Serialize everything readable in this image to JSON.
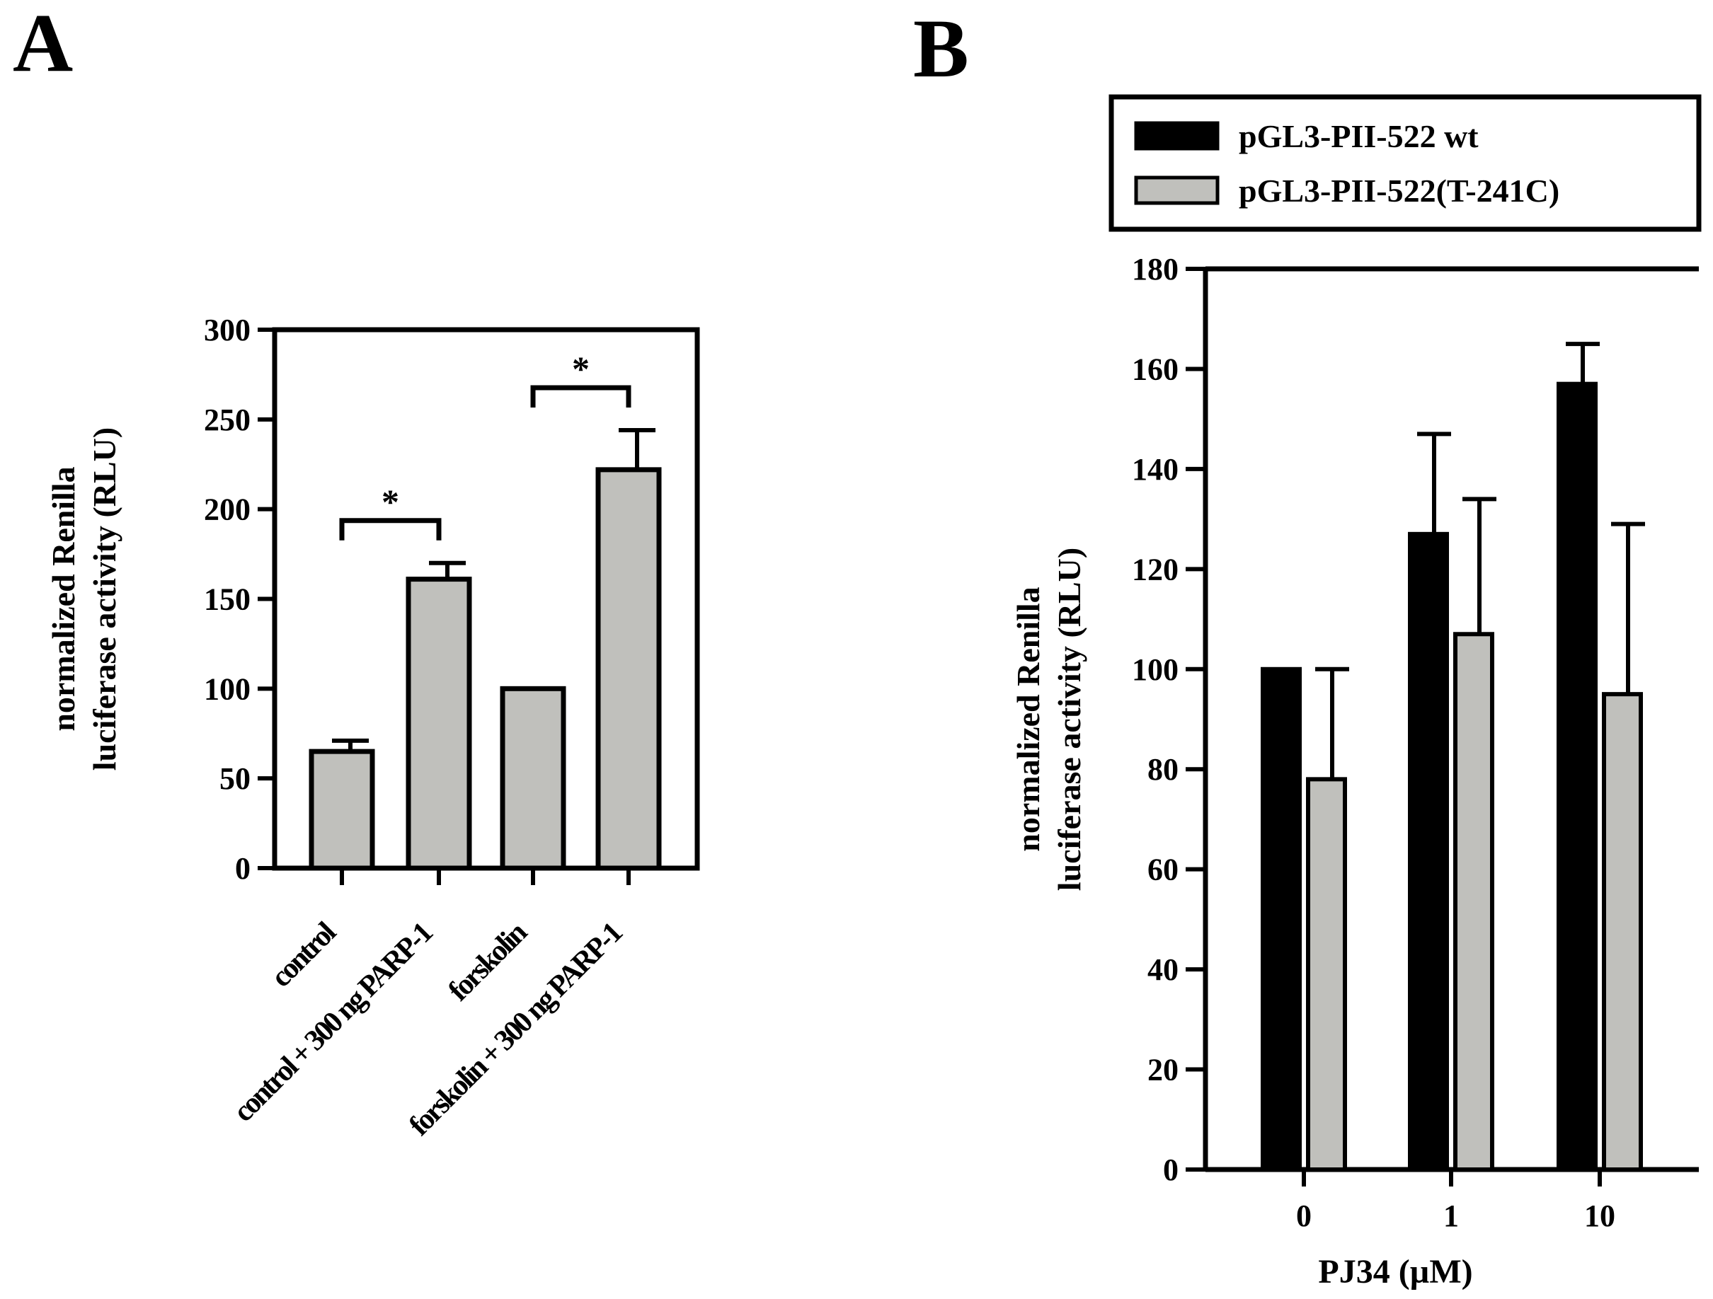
{
  "panels": {
    "a_label": "A",
    "b_label": "B"
  },
  "chart_data": [
    {
      "type": "bar",
      "panel": "A",
      "title": "",
      "xlabel": "",
      "ylabel_lines": [
        "normalized Renilla",
        "luciferase activity (RLU)"
      ],
      "ylim": [
        0,
        300
      ],
      "yticks": [
        "0",
        "50",
        "100",
        "150",
        "200",
        "250",
        "300"
      ],
      "categories": [
        "control",
        "control + 300 ng PARP-1",
        "forskolin",
        "forskolin + 300 ng PARP-1"
      ],
      "values": [
        65,
        161,
        100,
        222
      ],
      "errors": [
        6,
        9,
        0,
        22
      ],
      "bar_color": "#c0c0bc",
      "significance": [
        {
          "from": 0,
          "to": 1,
          "label": "*"
        },
        {
          "from": 2,
          "to": 3,
          "label": "*"
        }
      ]
    },
    {
      "type": "bar",
      "panel": "B",
      "title": "",
      "xlabel": "PJ34 (µM)",
      "ylabel_lines": [
        "normalized Renilla",
        "luciferase activity (RLU)"
      ],
      "ylim": [
        0,
        180
      ],
      "yticks": [
        "0",
        "20",
        "40",
        "60",
        "80",
        "100",
        "120",
        "140",
        "160",
        "180"
      ],
      "categories": [
        "0",
        "1",
        "10"
      ],
      "series": [
        {
          "name": "pGL3-PII-522 wt",
          "color": "#000000",
          "values": [
            100,
            127,
            157
          ],
          "errors": [
            0,
            20,
            8
          ]
        },
        {
          "name": "pGL3-PII-522(T-241C)",
          "color": "#c0c0bc",
          "values": [
            78,
            107,
            95
          ],
          "errors": [
            22,
            27,
            34
          ]
        }
      ],
      "legend_position": "top"
    }
  ]
}
